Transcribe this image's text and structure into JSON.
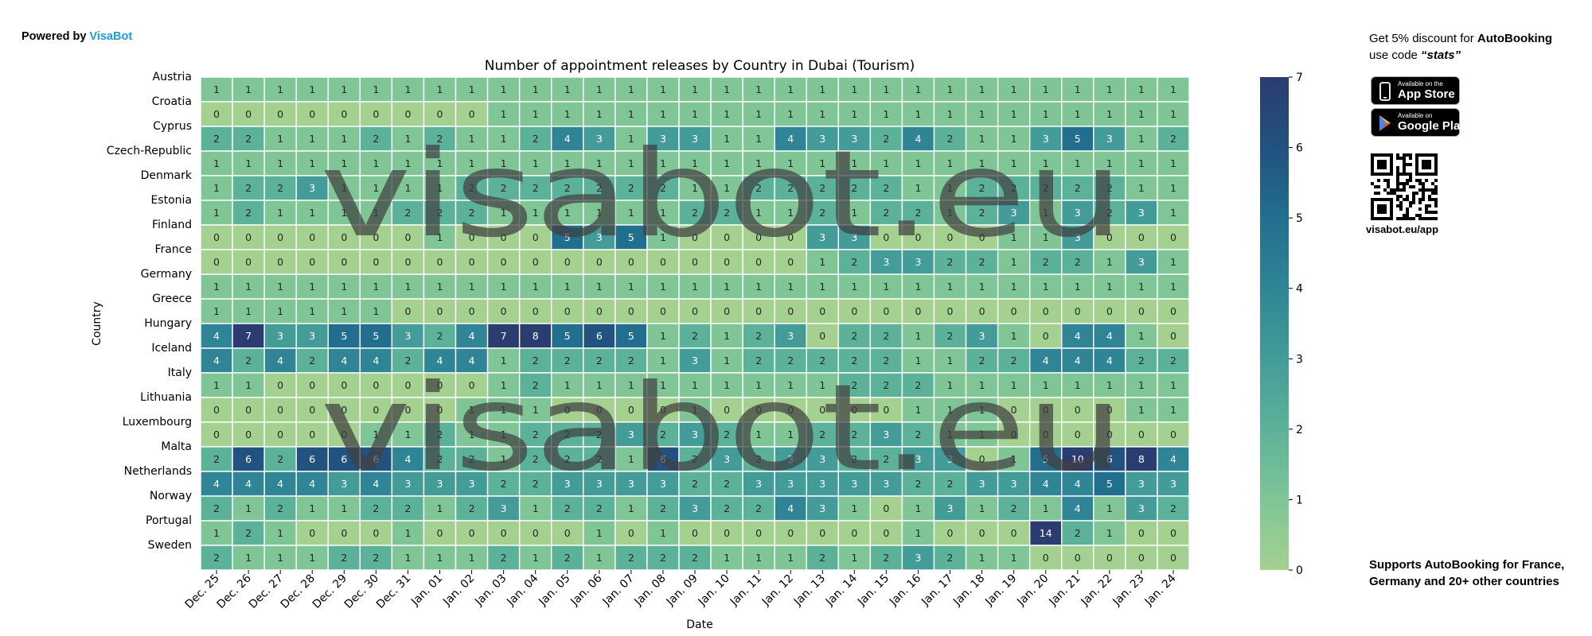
{
  "brand": {
    "prefix": "Powered by ",
    "name": "VisaBot"
  },
  "watermark": "visabot.eu",
  "promo": {
    "line_pre": "Get 5% discount for ",
    "product": "AutoBooking",
    "line_mid": " use code ",
    "code": "“stats”",
    "appstore_small": "Available on the",
    "appstore_big": "App Store",
    "googleplay_small": "Available on",
    "googleplay_big": "Google Play",
    "qr_url": "visabot.eu/app",
    "supports": "Supports AutoBooking for France, Germany and 20+ other countries"
  },
  "chart_data": {
    "type": "heatmap",
    "title": "Number of appointment releases by Country in Dubai (Tourism)",
    "xlabel": "Date",
    "ylabel": "Country",
    "x": [
      "Dec. 25",
      "Dec. 26",
      "Dec. 27",
      "Dec. 28",
      "Dec. 29",
      "Dec. 30",
      "Dec. 31",
      "Jan. 01",
      "Jan. 02",
      "Jan. 03",
      "Jan. 04",
      "Jan. 05",
      "Jan. 06",
      "Jan. 07",
      "Jan. 08",
      "Jan. 09",
      "Jan. 10",
      "Jan. 11",
      "Jan. 12",
      "Jan. 13",
      "Jan. 14",
      "Jan. 15",
      "Jan. 16",
      "Jan. 17",
      "Jan. 18",
      "Jan. 19",
      "Jan. 20",
      "Jan. 21",
      "Jan. 22",
      "Jan. 23",
      "Jan. 24"
    ],
    "y": [
      "Austria",
      "Croatia",
      "Cyprus",
      "Czech-Republic",
      "Denmark",
      "Estonia",
      "Finland",
      "France",
      "Germany",
      "Greece",
      "Hungary",
      "Iceland",
      "Italy",
      "Lithuania",
      "Luxembourg",
      "Malta",
      "Netherlands",
      "Norway",
      "Portugal",
      "Sweden"
    ],
    "values": [
      [
        1,
        1,
        1,
        1,
        1,
        1,
        1,
        1,
        1,
        1,
        1,
        1,
        1,
        1,
        1,
        1,
        1,
        1,
        1,
        1,
        1,
        1,
        1,
        1,
        1,
        1,
        1,
        1,
        1,
        1,
        1
      ],
      [
        0,
        0,
        0,
        0,
        0,
        0,
        0,
        0,
        0,
        1,
        1,
        1,
        1,
        1,
        1,
        1,
        1,
        1,
        1,
        1,
        1,
        1,
        1,
        1,
        1,
        1,
        1,
        1,
        1,
        1,
        1
      ],
      [
        2,
        2,
        1,
        1,
        1,
        2,
        1,
        2,
        1,
        1,
        2,
        4,
        3,
        1,
        3,
        3,
        1,
        1,
        4,
        3,
        3,
        2,
        4,
        2,
        1,
        1,
        3,
        5,
        3,
        1,
        2
      ],
      [
        1,
        1,
        1,
        1,
        1,
        1,
        1,
        1,
        1,
        1,
        1,
        1,
        1,
        1,
        1,
        1,
        1,
        1,
        1,
        1,
        1,
        1,
        1,
        1,
        1,
        1,
        1,
        1,
        1,
        1,
        1
      ],
      [
        1,
        2,
        2,
        3,
        1,
        1,
        1,
        1,
        2,
        2,
        2,
        2,
        2,
        2,
        2,
        1,
        1,
        2,
        2,
        2,
        2,
        2,
        1,
        1,
        2,
        2,
        2,
        2,
        2,
        1,
        1
      ],
      [
        1,
        2,
        1,
        1,
        1,
        1,
        2,
        2,
        2,
        1,
        1,
        1,
        1,
        1,
        1,
        2,
        2,
        1,
        1,
        2,
        1,
        2,
        2,
        1,
        2,
        3,
        1,
        3,
        2,
        3,
        1
      ],
      [
        0,
        0,
        0,
        0,
        0,
        0,
        0,
        1,
        0,
        0,
        0,
        5,
        3,
        5,
        1,
        0,
        0,
        0,
        0,
        3,
        3,
        0,
        0,
        0,
        0,
        1,
        1,
        3,
        0,
        0,
        0
      ],
      [
        0,
        0,
        0,
        0,
        0,
        0,
        0,
        0,
        0,
        0,
        0,
        0,
        0,
        0,
        0,
        0,
        0,
        0,
        0,
        1,
        2,
        3,
        3,
        2,
        2,
        1,
        2,
        2,
        1,
        3,
        1
      ],
      [
        1,
        1,
        1,
        1,
        1,
        1,
        1,
        1,
        1,
        1,
        1,
        1,
        1,
        1,
        1,
        1,
        1,
        1,
        1,
        1,
        1,
        1,
        1,
        1,
        1,
        1,
        1,
        1,
        1,
        1,
        1
      ],
      [
        1,
        1,
        1,
        1,
        1,
        1,
        0,
        0,
        0,
        0,
        0,
        0,
        0,
        0,
        0,
        0,
        0,
        0,
        0,
        0,
        0,
        0,
        0,
        0,
        0,
        0,
        0,
        0,
        0,
        0,
        0
      ],
      [
        4,
        7,
        3,
        3,
        5,
        5,
        3,
        2,
        4,
        7,
        8,
        5,
        6,
        5,
        1,
        2,
        1,
        2,
        3,
        0,
        2,
        2,
        1,
        2,
        3,
        1,
        0,
        4,
        4,
        1,
        0
      ],
      [
        4,
        2,
        4,
        2,
        4,
        4,
        2,
        4,
        4,
        1,
        2,
        2,
        2,
        2,
        1,
        3,
        1,
        2,
        2,
        2,
        2,
        2,
        1,
        1,
        2,
        2,
        4,
        4,
        4,
        2,
        2
      ],
      [
        1,
        1,
        0,
        0,
        0,
        0,
        0,
        0,
        0,
        1,
        2,
        1,
        1,
        1,
        1,
        1,
        1,
        1,
        1,
        1,
        2,
        2,
        2,
        1,
        1,
        1,
        1,
        1,
        1,
        1,
        1
      ],
      [
        0,
        0,
        0,
        0,
        0,
        0,
        0,
        0,
        1,
        1,
        1,
        0,
        0,
        0,
        0,
        1,
        0,
        0,
        0,
        0,
        0,
        0,
        1,
        1,
        1,
        0,
        0,
        0,
        0,
        1,
        1
      ],
      [
        0,
        0,
        0,
        0,
        0,
        1,
        1,
        2,
        1,
        1,
        2,
        2,
        2,
        3,
        2,
        3,
        2,
        1,
        1,
        2,
        2,
        3,
        2,
        1,
        1,
        0,
        0,
        0,
        0,
        0,
        0
      ],
      [
        2,
        6,
        2,
        6,
        6,
        6,
        4,
        2,
        2,
        1,
        2,
        2,
        2,
        1,
        6,
        2,
        3,
        2,
        3,
        3,
        2,
        2,
        3,
        3,
        0,
        1,
        5,
        10,
        6,
        8,
        4
      ],
      [
        4,
        4,
        4,
        4,
        3,
        4,
        3,
        3,
        3,
        2,
        2,
        3,
        3,
        3,
        3,
        2,
        2,
        3,
        3,
        3,
        3,
        3,
        2,
        2,
        3,
        3,
        4,
        4,
        5,
        3,
        3
      ],
      [
        2,
        1,
        2,
        1,
        1,
        2,
        2,
        1,
        2,
        3,
        1,
        2,
        2,
        1,
        2,
        3,
        2,
        2,
        4,
        3,
        1,
        0,
        1,
        3,
        1,
        2,
        1,
        4,
        1,
        3,
        2
      ],
      [
        1,
        2,
        1,
        0,
        0,
        0,
        1,
        0,
        0,
        0,
        0,
        0,
        1,
        0,
        1,
        0,
        0,
        0,
        0,
        0,
        0,
        0,
        1,
        0,
        0,
        0,
        14,
        2,
        1,
        0,
        0
      ],
      [
        2,
        1,
        1,
        1,
        2,
        2,
        1,
        1,
        1,
        2,
        1,
        2,
        1,
        2,
        2,
        2,
        1,
        1,
        1,
        2,
        1,
        2,
        3,
        2,
        1,
        1,
        0,
        0,
        0,
        0,
        0
      ]
    ],
    "colorbar": {
      "vmin": 0,
      "vmax": 7,
      "ticks": [
        "0",
        "1",
        "2",
        "3",
        "4",
        "5",
        "6",
        "7"
      ]
    },
    "colormap": [
      "#a4d190",
      "#7fc596",
      "#5cb299",
      "#439c98",
      "#2f8595",
      "#226e8f",
      "#22527f",
      "#2b3c71"
    ]
  }
}
